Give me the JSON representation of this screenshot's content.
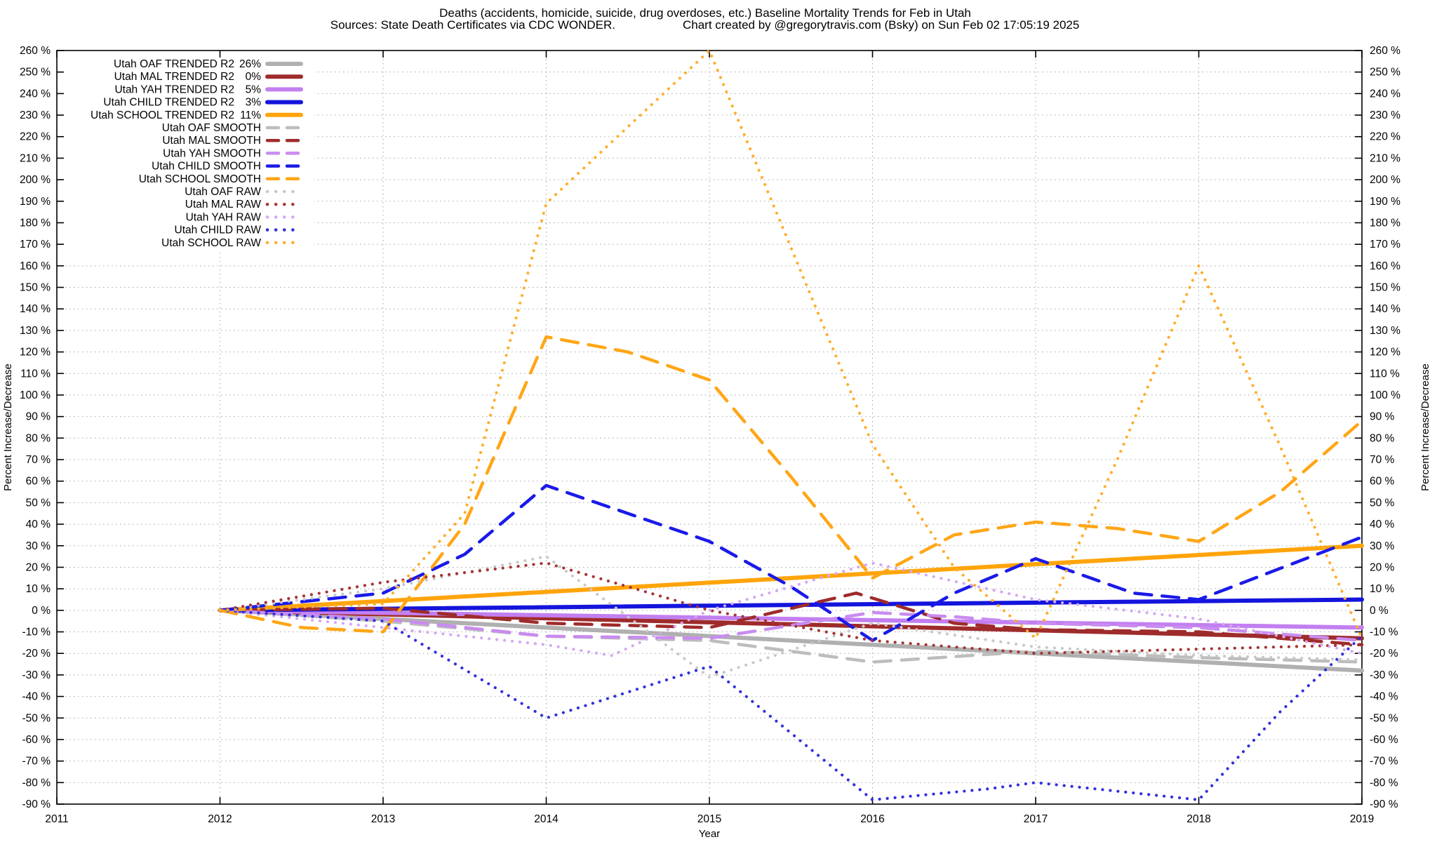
{
  "title": {
    "line1": "Deaths (accidents, homicide, suicide, drug overdoses, etc.)  Baseline Mortality Trends for Feb in Utah",
    "sources": "Sources: State Death Certificates via CDC WONDER.",
    "credit": "Chart created by @gregorytravis.com (Bsky) on Sun Feb 02 17:05:19 2025"
  },
  "x_axis": {
    "label": "Year",
    "ticks": [
      2011,
      2012,
      2013,
      2014,
      2015,
      2016,
      2017,
      2018,
      2019
    ]
  },
  "y_axis": {
    "label_left": "Percent Increase/Decrease",
    "label_right": "Percent Increase/Decrease",
    "min": -90,
    "max": 260,
    "step": 10,
    "suffix": " %"
  },
  "legend": {
    "items": [
      {
        "key": "oaf_trended",
        "label": "Utah OAF TRENDED R2",
        "value": "26%"
      },
      {
        "key": "mal_trended",
        "label": "Utah MAL TRENDED R2",
        "value": "0%"
      },
      {
        "key": "yah_trended",
        "label": "Utah YAH TRENDED R2",
        "value": "5%"
      },
      {
        "key": "child_trended",
        "label": "Utah CHILD TRENDED R2",
        "value": "3%"
      },
      {
        "key": "school_trended",
        "label": "Utah SCHOOL TRENDED R2",
        "value": "11%"
      },
      {
        "key": "oaf_smooth",
        "label": "Utah OAF SMOOTH",
        "value": null
      },
      {
        "key": "mal_smooth",
        "label": "Utah MAL SMOOTH",
        "value": null
      },
      {
        "key": "yah_smooth",
        "label": "Utah YAH SMOOTH",
        "value": null
      },
      {
        "key": "child_smooth",
        "label": "Utah CHILD SMOOTH",
        "value": null
      },
      {
        "key": "school_smooth",
        "label": "Utah SCHOOL SMOOTH",
        "value": null
      },
      {
        "key": "oaf_raw",
        "label": "Utah OAF RAW",
        "value": null
      },
      {
        "key": "mal_raw",
        "label": "Utah MAL RAW",
        "value": null
      },
      {
        "key": "yah_raw",
        "label": "Utah YAH RAW",
        "value": null
      },
      {
        "key": "child_raw",
        "label": "Utah CHILD RAW",
        "value": null
      },
      {
        "key": "school_raw",
        "label": "Utah SCHOOL RAW",
        "value": null
      }
    ]
  },
  "chart_data": {
    "type": "line",
    "title": "Deaths (accidents, homicide, suicide, drug overdoses, etc.)  Baseline Mortality Trends for Feb in Utah",
    "xlabel": "Year",
    "ylabel": "Percent Increase/Decrease",
    "xlim": [
      2011,
      2019
    ],
    "ylim": [
      -90,
      260
    ],
    "grid": true,
    "legend_position": "top-left",
    "series": [
      {
        "key": "oaf_trended",
        "name": "Utah OAF TRENDED R2 26%",
        "color": "#b0b0b0",
        "style": "solid",
        "width": 6,
        "points": [
          [
            2012,
            0
          ],
          [
            2019,
            -28
          ]
        ]
      },
      {
        "key": "mal_trended",
        "name": "Utah MAL TRENDED R2 0%",
        "color": "#9e2b2b",
        "style": "solid",
        "width": 6,
        "points": [
          [
            2012,
            0
          ],
          [
            2019,
            -13
          ]
        ]
      },
      {
        "key": "yah_trended",
        "name": "Utah YAH TRENDED R2 5%",
        "color": "#c27ff0",
        "style": "solid",
        "width": 6,
        "points": [
          [
            2012,
            0
          ],
          [
            2019,
            -8
          ]
        ]
      },
      {
        "key": "child_trended",
        "name": "Utah CHILD TRENDED R2 3%",
        "color": "#1414dd",
        "style": "solid",
        "width": 6,
        "points": [
          [
            2012,
            0
          ],
          [
            2019,
            5
          ]
        ]
      },
      {
        "key": "school_trended",
        "name": "Utah SCHOOL TRENDED R2 11%",
        "color": "#ffa40a",
        "style": "solid",
        "width": 6,
        "points": [
          [
            2012,
            0
          ],
          [
            2019,
            30
          ]
        ]
      },
      {
        "key": "oaf_smooth",
        "name": "Utah OAF SMOOTH",
        "color": "#bdbdbd",
        "style": "dash",
        "width": 4.5,
        "points": [
          [
            2012,
            0
          ],
          [
            2013,
            -5
          ],
          [
            2014,
            -12
          ],
          [
            2015,
            -14
          ],
          [
            2016,
            -24
          ],
          [
            2017,
            -19
          ],
          [
            2018,
            -22
          ],
          [
            2019,
            -24
          ]
        ]
      },
      {
        "key": "mal_smooth",
        "name": "Utah MAL SMOOTH",
        "color": "#9e2b2b",
        "style": "dash",
        "width": 4.5,
        "points": [
          [
            2012,
            0
          ],
          [
            2013,
            1
          ],
          [
            2014,
            -6
          ],
          [
            2015,
            -8
          ],
          [
            2015.9,
            8
          ],
          [
            2016.5,
            -6
          ],
          [
            2017,
            -9
          ],
          [
            2018,
            -10
          ],
          [
            2019,
            -16
          ]
        ]
      },
      {
        "key": "yah_smooth",
        "name": "Utah YAH SMOOTH",
        "color": "#c98cf0",
        "style": "dash",
        "width": 4.5,
        "points": [
          [
            2012,
            0
          ],
          [
            2013,
            -4
          ],
          [
            2014,
            -12
          ],
          [
            2015,
            -13
          ],
          [
            2016,
            -1
          ],
          [
            2016.5,
            -3
          ],
          [
            2017,
            -6
          ],
          [
            2018,
            -8
          ],
          [
            2019,
            -14
          ]
        ]
      },
      {
        "key": "child_smooth",
        "name": "Utah CHILD SMOOTH",
        "color": "#1a1ae8",
        "style": "dash",
        "width": 4.5,
        "points": [
          [
            2012,
            0
          ],
          [
            2013,
            8
          ],
          [
            2013.5,
            26
          ],
          [
            2014,
            58
          ],
          [
            2014.5,
            45
          ],
          [
            2015,
            32
          ],
          [
            2015.5,
            11
          ],
          [
            2016,
            -14
          ],
          [
            2016.5,
            8
          ],
          [
            2017,
            24
          ],
          [
            2017.6,
            8
          ],
          [
            2018,
            5
          ],
          [
            2019,
            34
          ]
        ]
      },
      {
        "key": "school_smooth",
        "name": "Utah SCHOOL SMOOTH",
        "color": "#ffa616",
        "style": "dash",
        "width": 4.5,
        "points": [
          [
            2012,
            0
          ],
          [
            2012.5,
            -8
          ],
          [
            2013,
            -10
          ],
          [
            2013.5,
            40
          ],
          [
            2014,
            127
          ],
          [
            2014.5,
            120
          ],
          [
            2015,
            107
          ],
          [
            2015.5,
            62
          ],
          [
            2016,
            15
          ],
          [
            2016.5,
            35
          ],
          [
            2017,
            41
          ],
          [
            2017.5,
            38
          ],
          [
            2018,
            32
          ],
          [
            2018.5,
            55
          ],
          [
            2019,
            88
          ]
        ]
      },
      {
        "key": "oaf_raw",
        "name": "Utah OAF RAW",
        "color": "#c9c9c9",
        "style": "dot",
        "width": 4.2,
        "points": [
          [
            2012,
            0
          ],
          [
            2013,
            10
          ],
          [
            2014,
            25
          ],
          [
            2015,
            -31
          ],
          [
            2016,
            -6
          ],
          [
            2017,
            -17
          ],
          [
            2018,
            -21
          ],
          [
            2019,
            -23
          ]
        ]
      },
      {
        "key": "mal_raw",
        "name": "Utah MAL RAW",
        "color": "#a63434",
        "style": "dot",
        "width": 4.2,
        "points": [
          [
            2012,
            0
          ],
          [
            2013,
            13
          ],
          [
            2014,
            22
          ],
          [
            2015,
            0
          ],
          [
            2016,
            -14
          ],
          [
            2017,
            -20
          ],
          [
            2018,
            -18
          ],
          [
            2019,
            -16
          ]
        ]
      },
      {
        "key": "yah_raw",
        "name": "Utah YAH RAW",
        "color": "#d5a8f4",
        "style": "dot",
        "width": 4.2,
        "points": [
          [
            2012,
            0
          ],
          [
            2013,
            -8
          ],
          [
            2014,
            -16
          ],
          [
            2014.4,
            -21
          ],
          [
            2015,
            0
          ],
          [
            2016,
            22
          ],
          [
            2017,
            5
          ],
          [
            2018,
            -4
          ],
          [
            2019,
            -20
          ]
        ]
      },
      {
        "key": "child_raw",
        "name": "Utah CHILD RAW",
        "color": "#3030e0",
        "style": "dot",
        "width": 4.2,
        "points": [
          [
            2012,
            0
          ],
          [
            2013,
            -5
          ],
          [
            2014,
            -50
          ],
          [
            2015,
            -26
          ],
          [
            2016,
            -88
          ],
          [
            2016.7,
            -83
          ],
          [
            2017,
            -80
          ],
          [
            2018,
            -88
          ],
          [
            2018.5,
            -47
          ],
          [
            2019,
            -12
          ]
        ]
      },
      {
        "key": "school_raw",
        "name": "Utah SCHOOL RAW",
        "color": "#ffae2e",
        "style": "dot",
        "width": 4.2,
        "points": [
          [
            2012,
            0
          ],
          [
            2013,
            3
          ],
          [
            2013.5,
            45
          ],
          [
            2014,
            189
          ],
          [
            2015,
            260
          ],
          [
            2016,
            77
          ],
          [
            2016.5,
            20
          ],
          [
            2017,
            -13
          ],
          [
            2017.5,
            70
          ],
          [
            2018,
            160
          ],
          [
            2018.5,
            76
          ],
          [
            2019,
            -13
          ]
        ]
      }
    ]
  }
}
